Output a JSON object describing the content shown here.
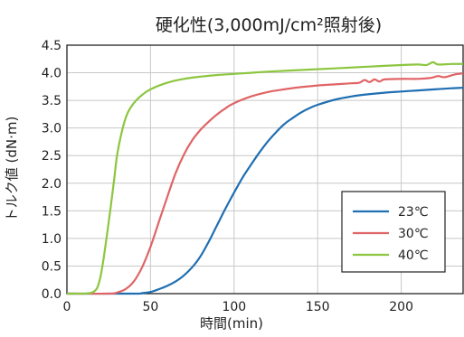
{
  "chart_data": {
    "type": "line",
    "title": "硬化性(3,000mJ/cm²照射後)",
    "xlabel": "時間(min)",
    "ylabel": "トルク値 (dN·m)",
    "xlim": [
      0,
      237
    ],
    "ylim": [
      0,
      4.5
    ],
    "xticks": [
      0,
      50,
      100,
      150,
      200
    ],
    "yticks": [
      0.0,
      0.5,
      1.0,
      1.5,
      2.0,
      2.5,
      3.0,
      3.5,
      4.0,
      4.5
    ],
    "xtick_labels": [
      "0",
      "50",
      "100",
      "150",
      "200"
    ],
    "ytick_labels": [
      "0.0",
      "0.5",
      "1.0",
      "1.5",
      "2.0",
      "2.5",
      "3.0",
      "3.5",
      "4.0",
      "4.5"
    ],
    "grid": true,
    "legend_position": "bottom-right",
    "series": [
      {
        "name": "23℃",
        "color": "#1f6fb2",
        "points": [
          [
            0,
            0
          ],
          [
            40,
            0
          ],
          [
            45,
            0.01
          ],
          [
            50,
            0.03
          ],
          [
            55,
            0.08
          ],
          [
            60,
            0.14
          ],
          [
            65,
            0.22
          ],
          [
            70,
            0.33
          ],
          [
            75,
            0.48
          ],
          [
            80,
            0.68
          ],
          [
            85,
            0.95
          ],
          [
            90,
            1.25
          ],
          [
            95,
            1.55
          ],
          [
            100,
            1.83
          ],
          [
            105,
            2.1
          ],
          [
            110,
            2.33
          ],
          [
            115,
            2.55
          ],
          [
            120,
            2.75
          ],
          [
            125,
            2.92
          ],
          [
            130,
            3.07
          ],
          [
            135,
            3.18
          ],
          [
            140,
            3.28
          ],
          [
            145,
            3.36
          ],
          [
            150,
            3.42
          ],
          [
            160,
            3.51
          ],
          [
            170,
            3.57
          ],
          [
            180,
            3.61
          ],
          [
            190,
            3.64
          ],
          [
            200,
            3.66
          ],
          [
            210,
            3.68
          ],
          [
            220,
            3.7
          ],
          [
            230,
            3.72
          ],
          [
            237,
            3.73
          ]
        ]
      },
      {
        "name": "30℃",
        "color": "#e06466",
        "points": [
          [
            0,
            0
          ],
          [
            25,
            0
          ],
          [
            30,
            0.02
          ],
          [
            35,
            0.08
          ],
          [
            40,
            0.22
          ],
          [
            45,
            0.48
          ],
          [
            50,
            0.85
          ],
          [
            55,
            1.3
          ],
          [
            60,
            1.75
          ],
          [
            65,
            2.18
          ],
          [
            70,
            2.52
          ],
          [
            75,
            2.78
          ],
          [
            80,
            2.97
          ],
          [
            85,
            3.12
          ],
          [
            90,
            3.25
          ],
          [
            95,
            3.36
          ],
          [
            100,
            3.45
          ],
          [
            110,
            3.57
          ],
          [
            120,
            3.65
          ],
          [
            130,
            3.7
          ],
          [
            140,
            3.74
          ],
          [
            150,
            3.77
          ],
          [
            160,
            3.79
          ],
          [
            170,
            3.81
          ],
          [
            175,
            3.82
          ],
          [
            178,
            3.87
          ],
          [
            181,
            3.83
          ],
          [
            184,
            3.88
          ],
          [
            187,
            3.84
          ],
          [
            190,
            3.88
          ],
          [
            200,
            3.89
          ],
          [
            210,
            3.89
          ],
          [
            218,
            3.91
          ],
          [
            222,
            3.94
          ],
          [
            226,
            3.92
          ],
          [
            232,
            3.97
          ],
          [
            237,
            3.99
          ]
        ]
      },
      {
        "name": "40℃",
        "color": "#8cc63f",
        "points": [
          [
            0,
            0
          ],
          [
            10,
            0
          ],
          [
            15,
            0.02
          ],
          [
            18,
            0.1
          ],
          [
            20,
            0.3
          ],
          [
            22,
            0.65
          ],
          [
            25,
            1.3
          ],
          [
            28,
            2.0
          ],
          [
            30,
            2.5
          ],
          [
            33,
            2.95
          ],
          [
            36,
            3.25
          ],
          [
            40,
            3.45
          ],
          [
            45,
            3.6
          ],
          [
            50,
            3.7
          ],
          [
            60,
            3.82
          ],
          [
            70,
            3.89
          ],
          [
            80,
            3.93
          ],
          [
            90,
            3.96
          ],
          [
            100,
            3.98
          ],
          [
            110,
            4.0
          ],
          [
            120,
            4.02
          ],
          [
            140,
            4.05
          ],
          [
            160,
            4.08
          ],
          [
            180,
            4.11
          ],
          [
            200,
            4.14
          ],
          [
            210,
            4.15
          ],
          [
            215,
            4.14
          ],
          [
            219,
            4.19
          ],
          [
            222,
            4.15
          ],
          [
            230,
            4.16
          ],
          [
            237,
            4.16
          ]
        ]
      }
    ]
  }
}
